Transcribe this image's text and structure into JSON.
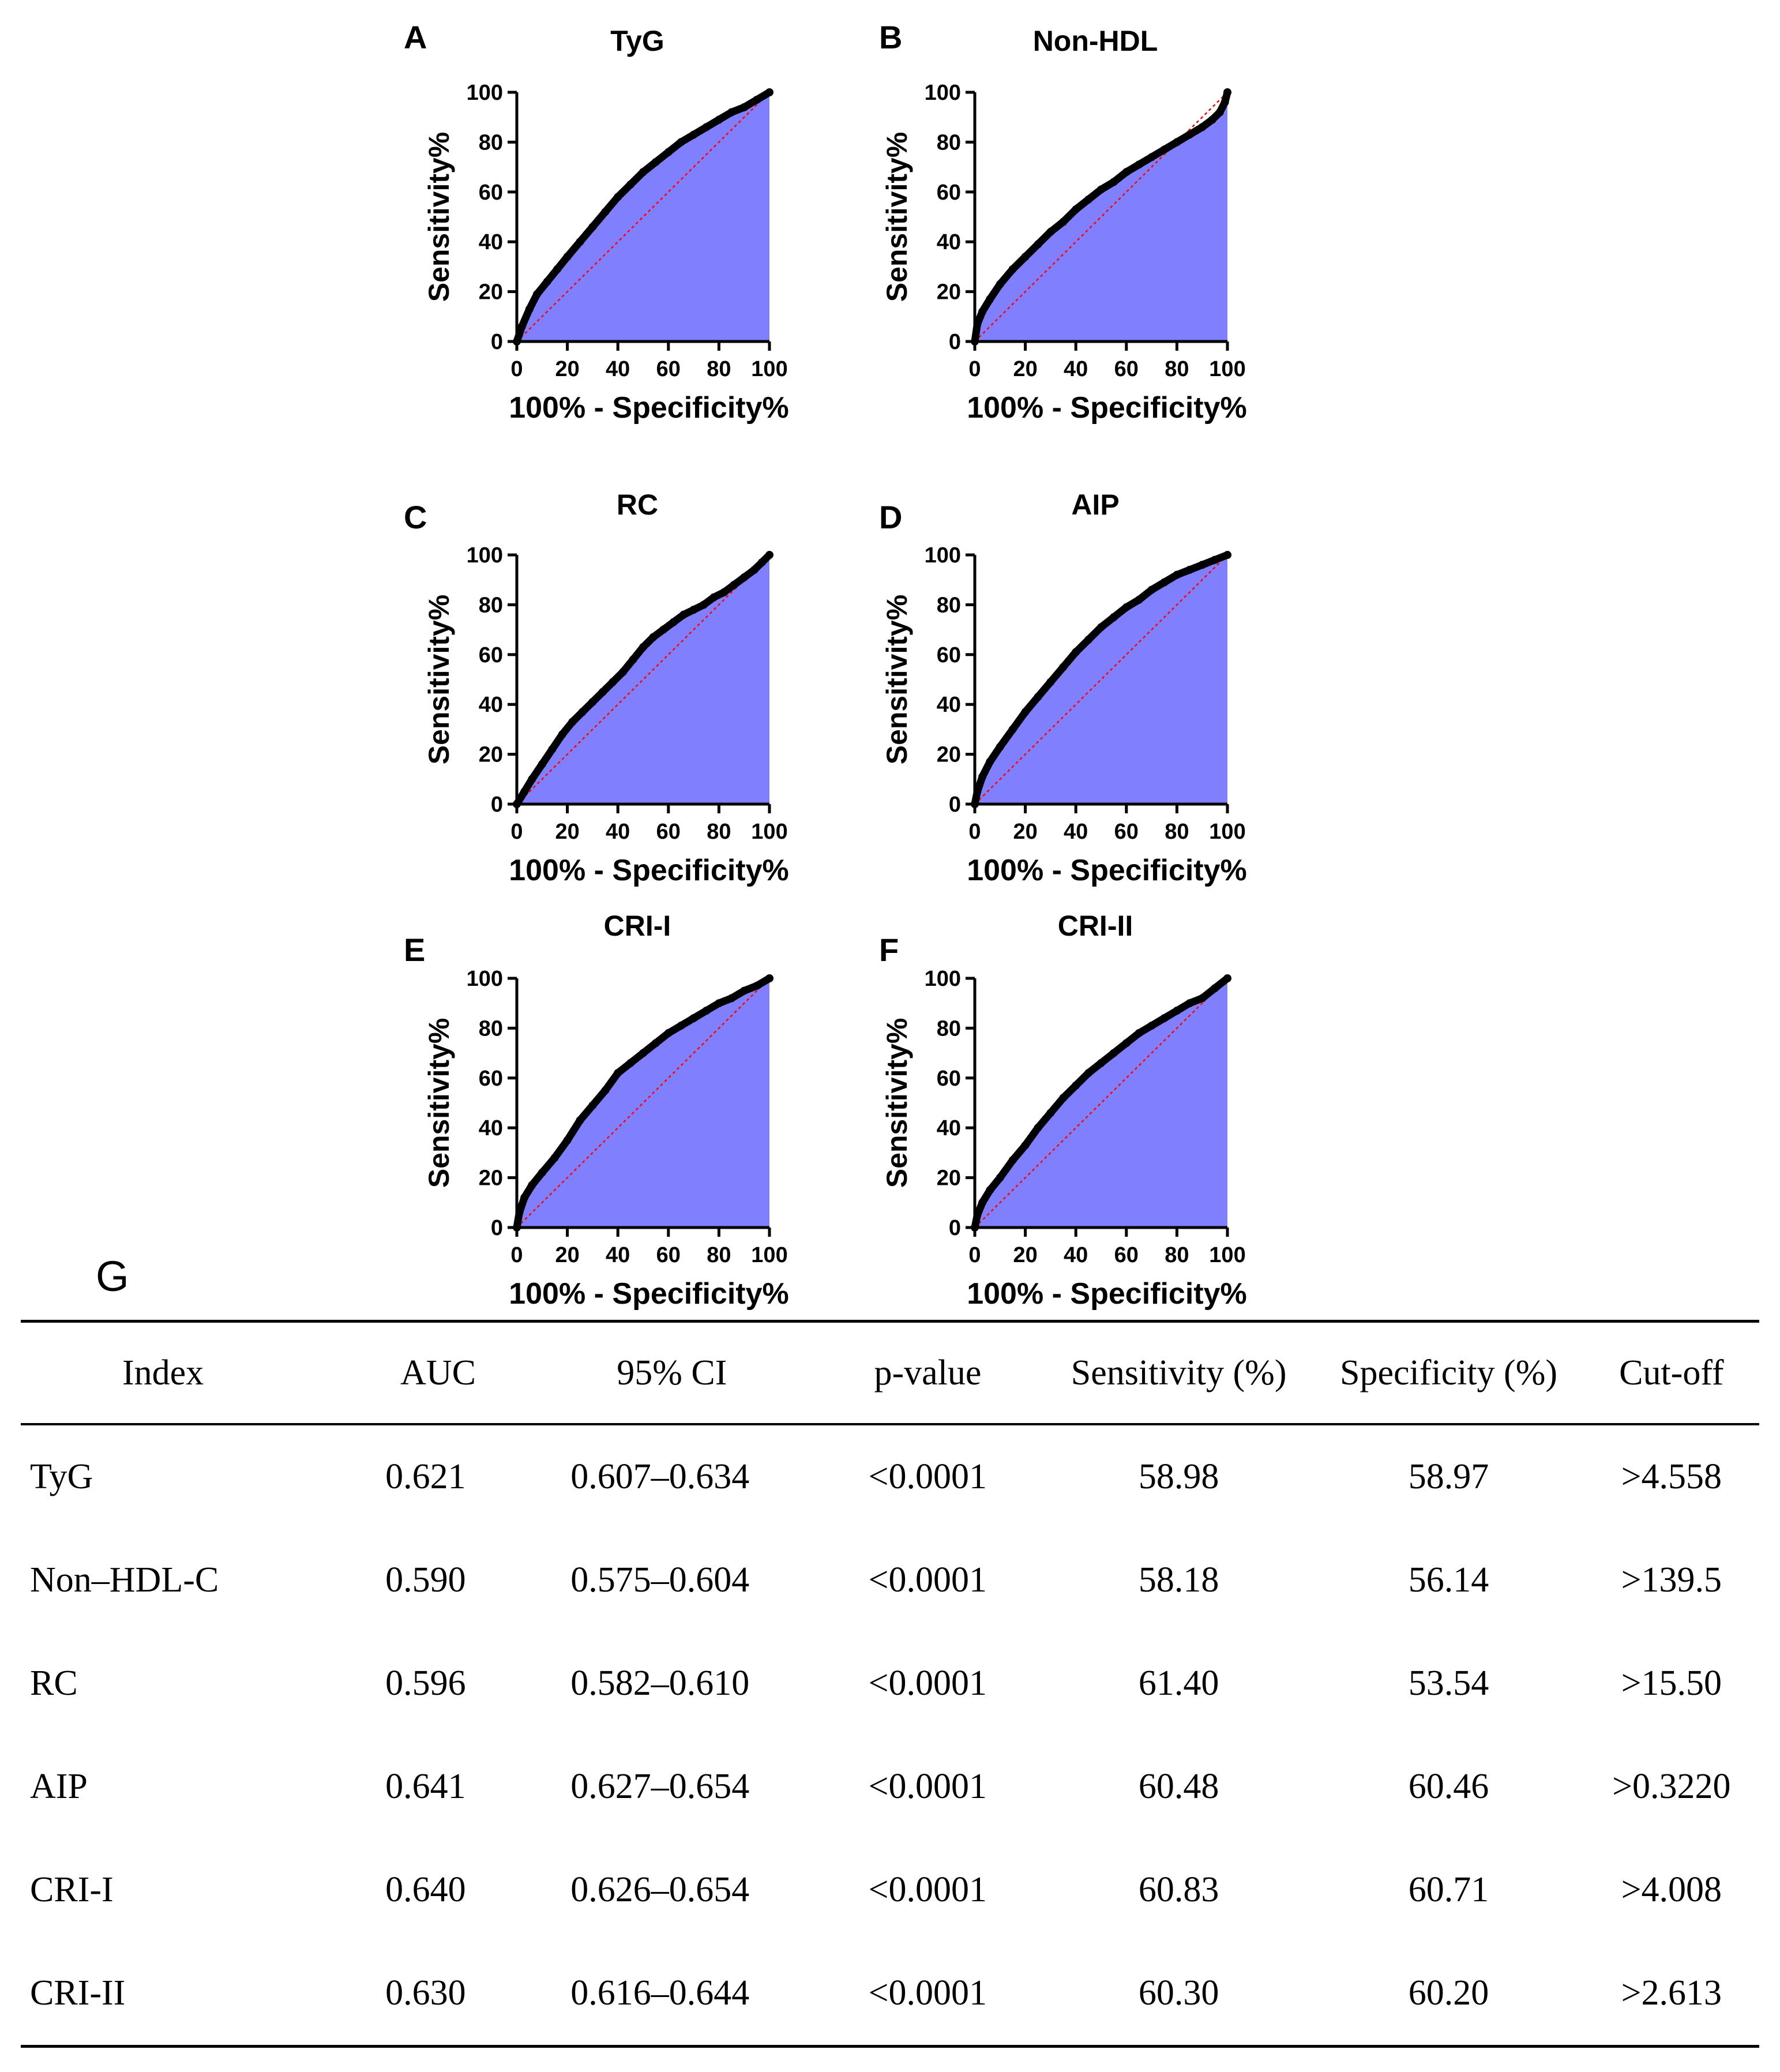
{
  "chart_data": [
    {
      "type": "area",
      "panel": "A",
      "title": "TyG",
      "xlabel": "100% - Specificity%",
      "ylabel": "Sensitivity%",
      "xlim": [
        0,
        100
      ],
      "ylim": [
        0,
        100
      ],
      "xticks": [
        0,
        20,
        40,
        60,
        80,
        100
      ],
      "yticks": [
        0,
        20,
        40,
        60,
        80,
        100
      ],
      "fill_color": "#8080ff",
      "line_color": "#000000",
      "reference_line_color": "#ff0000",
      "x": [
        0,
        2,
        5,
        8,
        12,
        16,
        20,
        25,
        30,
        35,
        40,
        45,
        50,
        55,
        60,
        65,
        70,
        75,
        80,
        85,
        90,
        95,
        100
      ],
      "y": [
        0,
        6,
        13,
        19,
        24,
        29,
        34,
        40,
        46,
        52,
        58,
        63,
        68,
        72,
        76,
        80,
        83,
        86,
        89,
        92,
        94,
        97,
        100
      ]
    },
    {
      "type": "area",
      "panel": "B",
      "title": "Non-HDL",
      "xlabel": "100% - Specificity%",
      "ylabel": "Sensitivity%",
      "xlim": [
        0,
        100
      ],
      "ylim": [
        0,
        100
      ],
      "xticks": [
        0,
        20,
        40,
        60,
        80,
        100
      ],
      "yticks": [
        0,
        20,
        40,
        60,
        80,
        100
      ],
      "fill_color": "#8080ff",
      "line_color": "#000000",
      "reference_line_color": "#ff0000",
      "x": [
        0,
        1,
        3,
        6,
        10,
        15,
        20,
        25,
        30,
        35,
        40,
        45,
        50,
        55,
        60,
        65,
        70,
        75,
        80,
        85,
        90,
        94,
        97,
        99,
        100
      ],
      "y": [
        0,
        7,
        12,
        17,
        23,
        29,
        34,
        39,
        44,
        48,
        53,
        57,
        61,
        64,
        68,
        71,
        74,
        77,
        80,
        83,
        86,
        89,
        92,
        96,
        100
      ]
    },
    {
      "type": "area",
      "panel": "C",
      "title": "RC",
      "xlabel": "100% - Specificity%",
      "ylabel": "Sensitivity%",
      "xlim": [
        0,
        100
      ],
      "ylim": [
        0,
        100
      ],
      "xticks": [
        0,
        20,
        40,
        60,
        80,
        100
      ],
      "yticks": [
        0,
        20,
        40,
        60,
        80,
        100
      ],
      "fill_color": "#8080ff",
      "line_color": "#000000",
      "reference_line_color": "#ff0000",
      "x": [
        0,
        3,
        6,
        10,
        14,
        18,
        22,
        26,
        30,
        34,
        38,
        42,
        46,
        50,
        54,
        58,
        62,
        66,
        70,
        74,
        78,
        82,
        86,
        90,
        94,
        97,
        100
      ],
      "y": [
        0,
        5,
        10,
        16,
        22,
        28,
        33,
        37,
        41,
        45,
        49,
        53,
        58,
        63,
        67,
        70,
        73,
        76,
        78,
        80,
        83,
        85,
        88,
        91,
        94,
        97,
        100
      ]
    },
    {
      "type": "area",
      "panel": "D",
      "title": "AIP",
      "xlabel": "100% - Specificity%",
      "ylabel": "Sensitivity%",
      "xlim": [
        0,
        100
      ],
      "ylim": [
        0,
        100
      ],
      "xticks": [
        0,
        20,
        40,
        60,
        80,
        100
      ],
      "yticks": [
        0,
        20,
        40,
        60,
        80,
        100
      ],
      "fill_color": "#8080ff",
      "line_color": "#000000",
      "reference_line_color": "#ff0000",
      "x": [
        0,
        1,
        3,
        6,
        10,
        15,
        20,
        25,
        30,
        35,
        40,
        45,
        50,
        55,
        60,
        65,
        70,
        75,
        80,
        85,
        90,
        95,
        100
      ],
      "y": [
        0,
        5,
        11,
        17,
        23,
        30,
        37,
        43,
        49,
        55,
        61,
        66,
        71,
        75,
        79,
        82,
        86,
        89,
        92,
        94,
        96,
        98,
        100
      ]
    },
    {
      "type": "area",
      "panel": "E",
      "title": "CRI-I",
      "xlabel": "100% - Specificity%",
      "ylabel": "Sensitivity%",
      "xlim": [
        0,
        100
      ],
      "ylim": [
        0,
        100
      ],
      "xticks": [
        0,
        20,
        40,
        60,
        80,
        100
      ],
      "yticks": [
        0,
        20,
        40,
        60,
        80,
        100
      ],
      "fill_color": "#8080ff",
      "line_color": "#000000",
      "reference_line_color": "#ff0000",
      "x": [
        0,
        1,
        3,
        6,
        10,
        15,
        20,
        25,
        30,
        35,
        40,
        45,
        50,
        55,
        60,
        65,
        70,
        75,
        80,
        85,
        90,
        95,
        100
      ],
      "y": [
        0,
        6,
        12,
        17,
        22,
        28,
        35,
        43,
        49,
        55,
        62,
        66,
        70,
        74,
        78,
        81,
        84,
        87,
        90,
        92,
        95,
        97,
        100
      ]
    },
    {
      "type": "area",
      "panel": "F",
      "title": "CRI-II",
      "xlabel": "100% - Specificity%",
      "ylabel": "Sensitivity%",
      "xlim": [
        0,
        100
      ],
      "ylim": [
        0,
        100
      ],
      "xticks": [
        0,
        20,
        40,
        60,
        80,
        100
      ],
      "yticks": [
        0,
        20,
        40,
        60,
        80,
        100
      ],
      "fill_color": "#8080ff",
      "line_color": "#000000",
      "reference_line_color": "#ff0000",
      "x": [
        0,
        1,
        3,
        6,
        10,
        15,
        20,
        25,
        30,
        35,
        40,
        45,
        50,
        55,
        60,
        65,
        70,
        75,
        80,
        85,
        90,
        95,
        100
      ],
      "y": [
        0,
        5,
        10,
        15,
        20,
        27,
        33,
        40,
        46,
        52,
        57,
        62,
        66,
        70,
        74,
        78,
        81,
        84,
        87,
        90,
        92,
        96,
        100
      ]
    }
  ],
  "table": {
    "panel_label": "G",
    "headers": [
      "Index",
      "AUC",
      "95% CI",
      "p-value",
      "Sensitivity (%)",
      "Specificity (%)",
      "Cut-off"
    ],
    "rows": [
      [
        "TyG",
        "0.621",
        "0.607–0.634",
        "<0.0001",
        "58.98",
        "58.97",
        ">4.558"
      ],
      [
        "Non–HDL-C",
        "0.590",
        "0.575–0.604",
        "<0.0001",
        "58.18",
        "56.14",
        ">139.5"
      ],
      [
        "RC",
        "0.596",
        "0.582–0.610",
        "<0.0001",
        "61.40",
        "53.54",
        ">15.50"
      ],
      [
        "AIP",
        "0.641",
        "0.627–0.654",
        "<0.0001",
        "60.48",
        "60.46",
        ">0.3220"
      ],
      [
        "CRI-I",
        "0.640",
        "0.626–0.654",
        "<0.0001",
        "60.83",
        "60.71",
        ">4.008"
      ],
      [
        "CRI-II",
        "0.630",
        "0.616–0.644",
        "<0.0001",
        "60.30",
        "60.20",
        ">2.613"
      ]
    ]
  }
}
